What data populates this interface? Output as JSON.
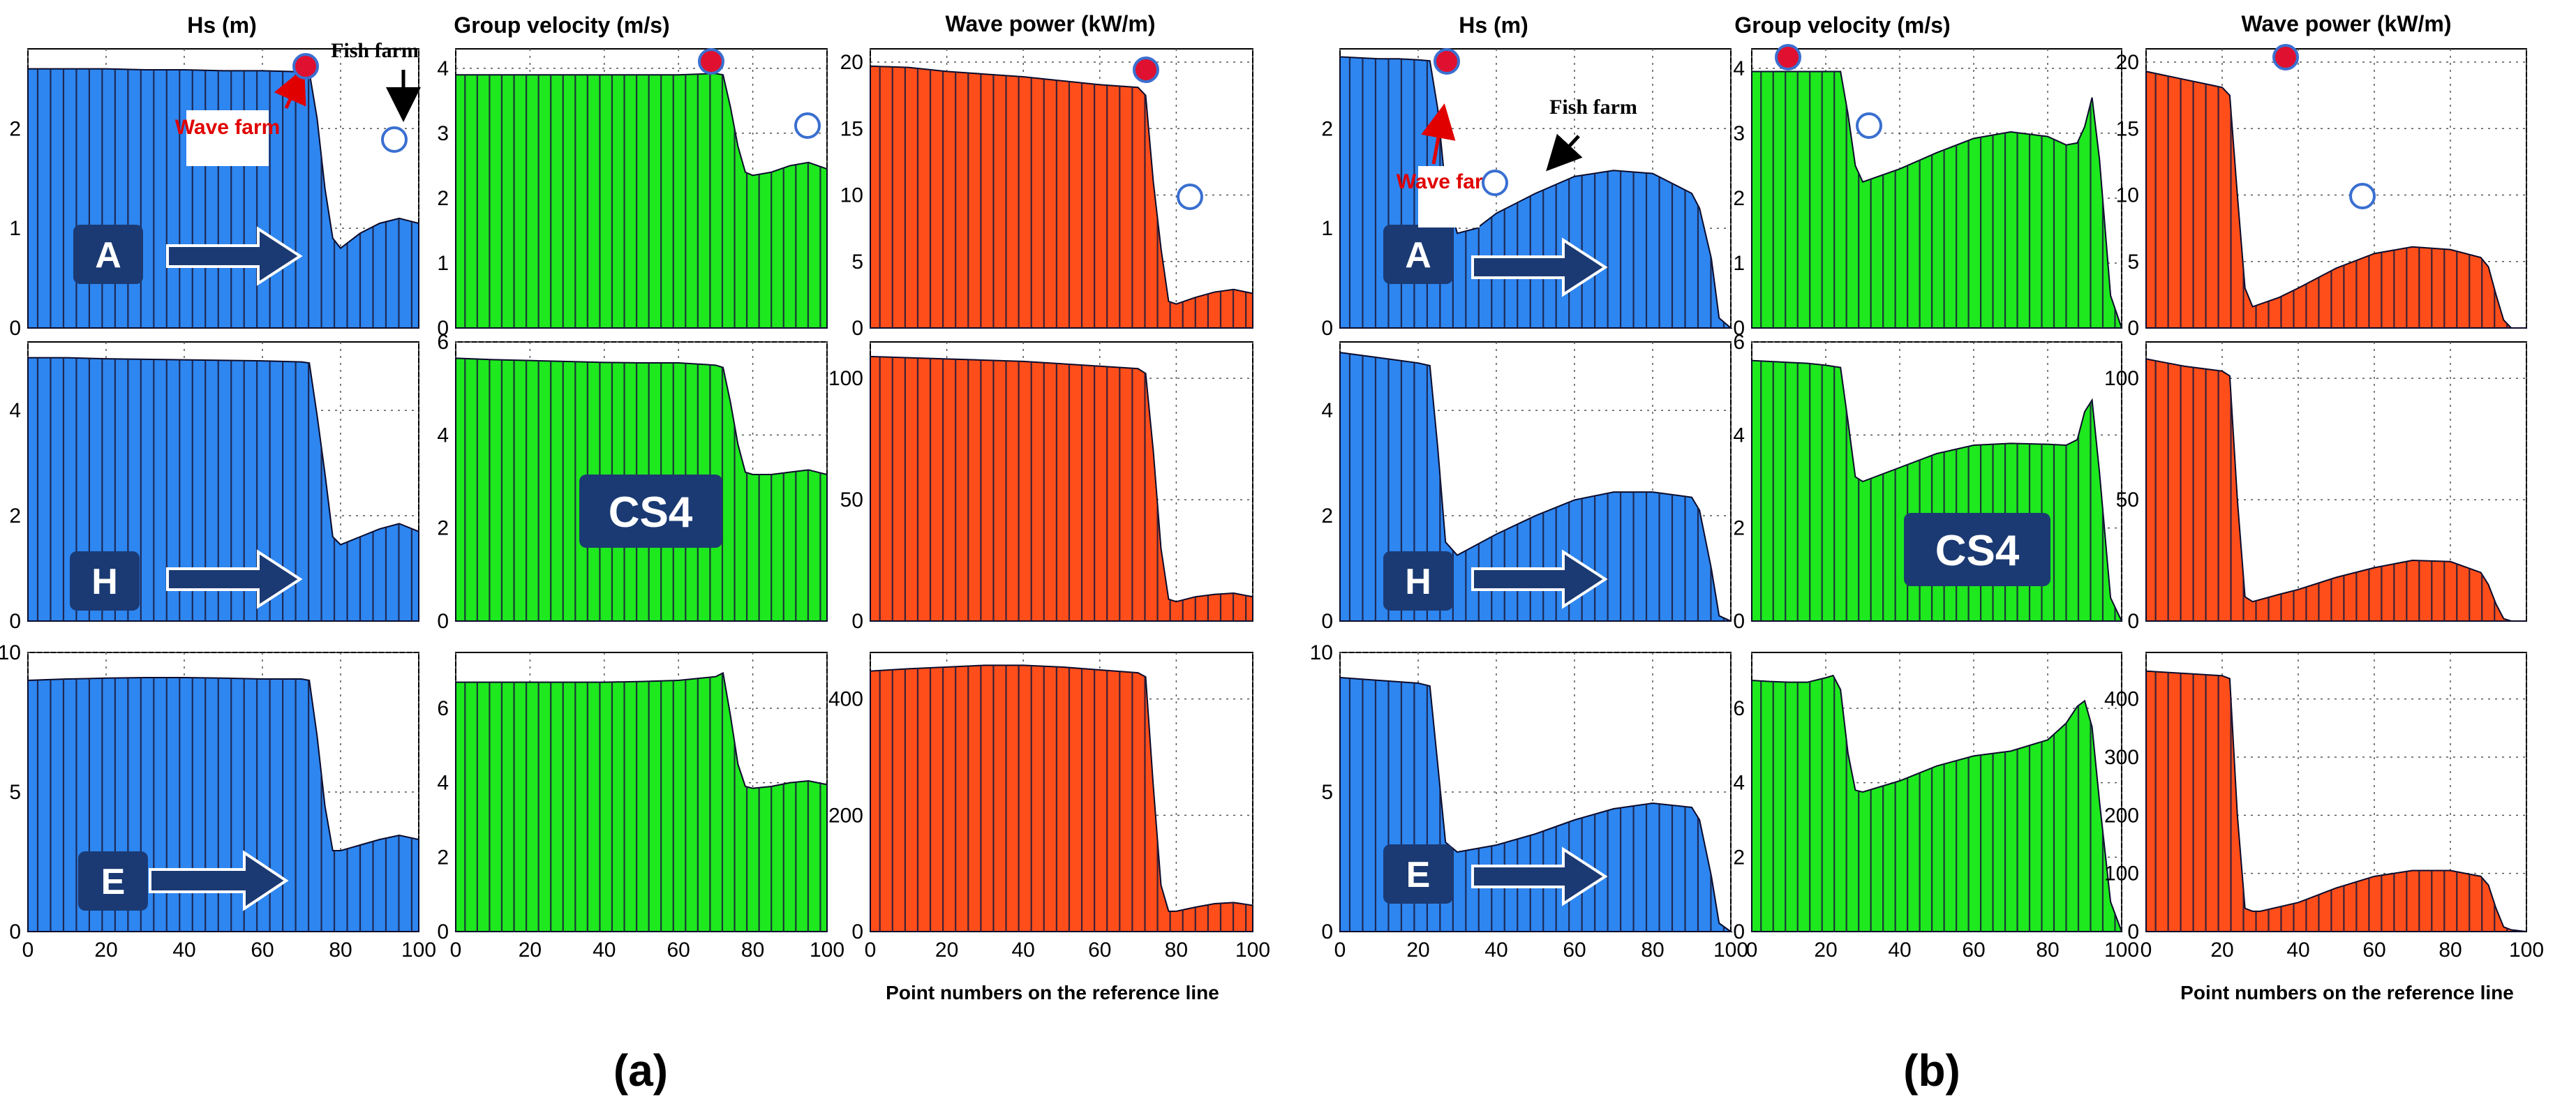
{
  "figure": {
    "sub_labels": [
      "(a)",
      "(b)"
    ],
    "x_axis_title": "Point numbers on the reference line",
    "column_titles": [
      "Hs (m)",
      "Group velocity (m/s)",
      "Wave power (kW/m)"
    ],
    "row_labels": [
      "A",
      "H",
      "E"
    ],
    "center_tag": "CS4",
    "annotations": {
      "wave_farm": "Wave farm",
      "fish_farm": "Fish farm"
    },
    "colors": {
      "hs": "#2e86f0",
      "velocity": "#1ee81e",
      "power": "#ff4e1a",
      "stripe": "#1a1a3c",
      "label_box": "#1b3a73",
      "marker": "#e01030"
    }
  },
  "chart_data": [
    {
      "group": "a",
      "row": "A",
      "variable": "Hs (m)",
      "type": "area",
      "x": [
        0,
        10,
        20,
        30,
        40,
        50,
        60,
        70,
        72,
        74,
        76,
        78,
        80,
        85,
        90,
        95,
        100
      ],
      "y": [
        2.6,
        2.6,
        2.6,
        2.59,
        2.59,
        2.58,
        2.58,
        2.57,
        2.57,
        2.1,
        1.4,
        0.9,
        0.8,
        0.95,
        1.05,
        1.1,
        1.05
      ],
      "xlim": [
        0,
        100
      ],
      "ylim": [
        0,
        2.8
      ],
      "yticks": [
        0,
        1,
        2
      ],
      "xticks": [
        0,
        20,
        40,
        60,
        80,
        100
      ],
      "xticklabels_shown": false
    },
    {
      "group": "a",
      "row": "A",
      "variable": "Group velocity (m/s)",
      "type": "area",
      "x": [
        0,
        10,
        20,
        30,
        40,
        50,
        60,
        70,
        72,
        74,
        76,
        78,
        80,
        85,
        90,
        95,
        100
      ],
      "y": [
        3.9,
        3.9,
        3.9,
        3.9,
        3.9,
        3.9,
        3.9,
        3.92,
        3.9,
        3.4,
        2.8,
        2.4,
        2.35,
        2.4,
        2.5,
        2.55,
        2.45
      ],
      "xlim": [
        0,
        100
      ],
      "ylim": [
        0,
        4.3
      ],
      "yticks": [
        0,
        1,
        2,
        3,
        4
      ],
      "xticks": [
        0,
        20,
        40,
        60,
        80,
        100
      ],
      "xticklabels_shown": false
    },
    {
      "group": "a",
      "row": "A",
      "variable": "Wave power (kW/m)",
      "type": "area",
      "x": [
        0,
        10,
        20,
        30,
        40,
        50,
        60,
        70,
        72,
        74,
        76,
        78,
        80,
        85,
        90,
        95,
        100
      ],
      "y": [
        19.7,
        19.6,
        19.3,
        19.1,
        18.9,
        18.6,
        18.3,
        18.1,
        17.5,
        11,
        6,
        2,
        1.8,
        2.3,
        2.7,
        2.9,
        2.6
      ],
      "xlim": [
        0,
        100
      ],
      "ylim": [
        0,
        21
      ],
      "yticks": [
        0,
        5,
        10,
        15,
        20
      ],
      "xticks": [
        0,
        20,
        40,
        60,
        80,
        100
      ],
      "xticklabels_shown": false
    },
    {
      "group": "a",
      "row": "H",
      "variable": "Hs (m)",
      "type": "area",
      "x": [
        0,
        10,
        20,
        30,
        40,
        50,
        60,
        70,
        72,
        74,
        76,
        78,
        80,
        85,
        90,
        95,
        100
      ],
      "y": [
        5.0,
        5.0,
        4.98,
        4.97,
        4.96,
        4.95,
        4.94,
        4.92,
        4.9,
        3.9,
        2.8,
        1.6,
        1.45,
        1.6,
        1.75,
        1.85,
        1.7
      ],
      "xlim": [
        0,
        100
      ],
      "ylim": [
        0,
        5.3
      ],
      "yticks": [
        0,
        2,
        4
      ],
      "xticks": [
        0,
        20,
        40,
        60,
        80,
        100
      ],
      "xticklabels_shown": false
    },
    {
      "group": "a",
      "row": "H",
      "variable": "Group velocity (m/s)",
      "type": "area",
      "x": [
        0,
        10,
        20,
        30,
        40,
        50,
        60,
        70,
        72,
        74,
        76,
        78,
        80,
        85,
        90,
        95,
        100
      ],
      "y": [
        5.65,
        5.62,
        5.6,
        5.58,
        5.56,
        5.55,
        5.55,
        5.5,
        5.45,
        4.7,
        3.8,
        3.2,
        3.15,
        3.15,
        3.2,
        3.25,
        3.15
      ],
      "xlim": [
        0,
        100
      ],
      "ylim": [
        0,
        6
      ],
      "yticks": [
        0,
        2,
        4,
        6
      ],
      "xticks": [
        0,
        20,
        40,
        60,
        80,
        100
      ],
      "xticklabels_shown": false
    },
    {
      "group": "a",
      "row": "H",
      "variable": "Wave power (kW/m)",
      "type": "area",
      "x": [
        0,
        10,
        20,
        30,
        40,
        50,
        60,
        70,
        72,
        74,
        76,
        78,
        80,
        85,
        90,
        95,
        100
      ],
      "y": [
        109,
        108.5,
        108,
        107.5,
        107,
        106,
        105,
        104,
        102,
        70,
        30,
        9,
        8,
        10,
        11,
        11.5,
        10
      ],
      "xlim": [
        0,
        100
      ],
      "ylim": [
        0,
        115
      ],
      "yticks": [
        0,
        50,
        100
      ],
      "xticks": [
        0,
        20,
        40,
        60,
        80,
        100
      ],
      "xticklabels_shown": false
    },
    {
      "group": "a",
      "row": "E",
      "variable": "Hs (m)",
      "type": "area",
      "x": [
        0,
        10,
        20,
        30,
        40,
        50,
        60,
        70,
        72,
        74,
        76,
        78,
        80,
        85,
        90,
        95,
        100
      ],
      "y": [
        9.0,
        9.05,
        9.08,
        9.1,
        9.1,
        9.08,
        9.05,
        9.05,
        9.0,
        7.0,
        4.5,
        2.9,
        2.9,
        3.1,
        3.3,
        3.45,
        3.3
      ],
      "xlim": [
        0,
        100
      ],
      "ylim": [
        0,
        10
      ],
      "yticks": [
        0,
        5,
        10
      ],
      "xticks": [
        0,
        20,
        40,
        60,
        80,
        100
      ],
      "xticklabels_shown": true
    },
    {
      "group": "a",
      "row": "E",
      "variable": "Group velocity (m/s)",
      "type": "area",
      "x": [
        0,
        10,
        20,
        30,
        40,
        50,
        60,
        70,
        72,
        74,
        76,
        78,
        80,
        85,
        90,
        95,
        100
      ],
      "y": [
        6.7,
        6.7,
        6.7,
        6.7,
        6.7,
        6.72,
        6.75,
        6.85,
        6.95,
        5.8,
        4.5,
        3.9,
        3.85,
        3.9,
        4.0,
        4.05,
        3.95
      ],
      "xlim": [
        0,
        100
      ],
      "ylim": [
        0,
        7.5
      ],
      "yticks": [
        0,
        2,
        4,
        6
      ],
      "xticks": [
        0,
        20,
        40,
        60,
        80,
        100
      ],
      "xticklabels_shown": true
    },
    {
      "group": "a",
      "row": "E",
      "variable": "Wave power (kW/m)",
      "type": "area",
      "x": [
        0,
        10,
        20,
        30,
        40,
        50,
        60,
        70,
        72,
        74,
        76,
        78,
        80,
        85,
        90,
        95,
        100
      ],
      "y": [
        448,
        452,
        455,
        458,
        458,
        455,
        450,
        445,
        438,
        250,
        80,
        35,
        35,
        42,
        48,
        50,
        45
      ],
      "xlim": [
        0,
        100
      ],
      "ylim": [
        0,
        480
      ],
      "yticks": [
        0,
        200,
        400
      ],
      "xticks": [
        0,
        20,
        40,
        60,
        80,
        100
      ],
      "xticklabels_shown": true
    },
    {
      "group": "b",
      "row": "A",
      "variable": "Hs (m)",
      "type": "area",
      "x": [
        0,
        5,
        10,
        15,
        20,
        23,
        25,
        27,
        30,
        35,
        40,
        50,
        60,
        70,
        80,
        90,
        92,
        95,
        97,
        100
      ],
      "y": [
        2.72,
        2.71,
        2.7,
        2.7,
        2.69,
        2.68,
        2.2,
        1.4,
        0.95,
        1.0,
        1.15,
        1.35,
        1.52,
        1.58,
        1.55,
        1.35,
        1.2,
        0.7,
        0.1,
        0
      ],
      "xlim": [
        0,
        100
      ],
      "ylim": [
        0,
        2.8
      ],
      "yticks": [
        0,
        1,
        2
      ],
      "xticks": [
        0,
        20,
        40,
        60,
        80,
        100
      ],
      "xticklabels_shown": false
    },
    {
      "group": "b",
      "row": "A",
      "variable": "Group velocity (m/s)",
      "type": "area",
      "x": [
        0,
        5,
        10,
        15,
        20,
        24,
        26,
        28,
        30,
        40,
        50,
        60,
        70,
        80,
        85,
        88,
        90,
        92,
        94,
        97,
        100
      ],
      "y": [
        3.95,
        3.95,
        3.95,
        3.95,
        3.95,
        3.95,
        3.3,
        2.5,
        2.25,
        2.45,
        2.7,
        2.92,
        3.02,
        2.95,
        2.82,
        2.85,
        3.1,
        3.55,
        2.6,
        0.5,
        0
      ],
      "xlim": [
        0,
        100
      ],
      "ylim": [
        0,
        4.3
      ],
      "yticks": [
        0,
        1,
        2,
        3,
        4
      ],
      "xticks": [
        0,
        20,
        40,
        60,
        80,
        100
      ],
      "xticklabels_shown": false
    },
    {
      "group": "b",
      "row": "A",
      "variable": "Wave power (kW/m)",
      "type": "area",
      "x": [
        0,
        5,
        10,
        15,
        20,
        22,
        24,
        26,
        28,
        35,
        40,
        50,
        60,
        70,
        80,
        88,
        90,
        92,
        94,
        96,
        100
      ],
      "y": [
        19.3,
        19.0,
        18.7,
        18.4,
        18.1,
        17.5,
        10,
        3,
        1.6,
        2.3,
        3,
        4.5,
        5.6,
        6.1,
        5.9,
        5.3,
        4.6,
        2.5,
        0.6,
        0,
        0
      ],
      "xlim": [
        0,
        100
      ],
      "ylim": [
        0,
        21
      ],
      "yticks": [
        0,
        5,
        10,
        15,
        20
      ],
      "xticks": [
        0,
        20,
        40,
        60,
        80,
        100
      ],
      "xticklabels_shown": false
    },
    {
      "group": "b",
      "row": "H",
      "variable": "Hs (m)",
      "type": "area",
      "x": [
        0,
        5,
        10,
        15,
        20,
        23,
        25,
        27,
        30,
        40,
        50,
        60,
        70,
        80,
        90,
        92,
        95,
        97,
        100
      ],
      "y": [
        5.1,
        5.05,
        5.0,
        4.95,
        4.9,
        4.85,
        3.3,
        1.5,
        1.25,
        1.65,
        2.0,
        2.3,
        2.45,
        2.45,
        2.35,
        2.1,
        1.0,
        0.1,
        0
      ],
      "xlim": [
        0,
        100
      ],
      "ylim": [
        0,
        5.3
      ],
      "yticks": [
        0,
        2,
        4
      ],
      "xticks": [
        0,
        20,
        40,
        60,
        80,
        100
      ],
      "xticklabels_shown": false
    },
    {
      "group": "b",
      "row": "H",
      "variable": "Group velocity (m/s)",
      "type": "area",
      "x": [
        0,
        5,
        10,
        15,
        20,
        24,
        26,
        28,
        30,
        40,
        50,
        60,
        70,
        80,
        85,
        88,
        90,
        92,
        94,
        97,
        100
      ],
      "y": [
        5.6,
        5.58,
        5.56,
        5.54,
        5.5,
        5.45,
        4.3,
        3.1,
        3.0,
        3.3,
        3.6,
        3.78,
        3.82,
        3.8,
        3.78,
        3.9,
        4.5,
        4.75,
        3.2,
        0.5,
        0
      ],
      "xlim": [
        0,
        100
      ],
      "ylim": [
        0,
        6
      ],
      "yticks": [
        0,
        2,
        4,
        6
      ],
      "xticks": [
        0,
        20,
        40,
        60,
        80,
        100
      ],
      "xticklabels_shown": false
    },
    {
      "group": "b",
      "row": "H",
      "variable": "Wave power (kW/m)",
      "type": "area",
      "x": [
        0,
        5,
        10,
        15,
        20,
        22,
        24,
        26,
        28,
        35,
        40,
        50,
        60,
        70,
        80,
        88,
        90,
        92,
        94,
        96,
        100
      ],
      "y": [
        108,
        106.5,
        105,
        104,
        103,
        101,
        50,
        10,
        8,
        11,
        13,
        18,
        22,
        25,
        24.5,
        20,
        15,
        7,
        1,
        0,
        0
      ],
      "xlim": [
        0,
        100
      ],
      "ylim": [
        0,
        115
      ],
      "yticks": [
        0,
        50,
        100
      ],
      "xticks": [
        0,
        20,
        40,
        60,
        80,
        100
      ],
      "xticklabels_shown": false
    },
    {
      "group": "b",
      "row": "E",
      "variable": "Hs (m)",
      "type": "area",
      "x": [
        0,
        5,
        10,
        15,
        20,
        23,
        25,
        27,
        30,
        40,
        50,
        60,
        70,
        80,
        90,
        92,
        95,
        97,
        100
      ],
      "y": [
        9.1,
        9.05,
        9.0,
        8.95,
        8.9,
        8.8,
        6.0,
        3.2,
        2.85,
        3.1,
        3.5,
        4.0,
        4.4,
        4.6,
        4.45,
        4.0,
        2.0,
        0.3,
        0
      ],
      "xlim": [
        0,
        100
      ],
      "ylim": [
        0,
        10
      ],
      "yticks": [
        0,
        5,
        10
      ],
      "xticks": [
        0,
        20,
        40,
        60,
        80,
        100
      ],
      "xticklabels_shown": true
    },
    {
      "group": "b",
      "row": "E",
      "variable": "Group velocity (m/s)",
      "type": "area",
      "x": [
        0,
        5,
        10,
        15,
        20,
        22,
        24,
        26,
        28,
        30,
        40,
        50,
        60,
        70,
        80,
        85,
        88,
        90,
        92,
        94,
        97,
        100
      ],
      "y": [
        6.75,
        6.72,
        6.7,
        6.7,
        6.82,
        6.88,
        6.5,
        4.8,
        3.8,
        3.75,
        4.05,
        4.45,
        4.72,
        4.85,
        5.15,
        5.6,
        6.05,
        6.2,
        5.5,
        3.5,
        0.8,
        0
      ],
      "xlim": [
        0,
        100
      ],
      "ylim": [
        0,
        7.5
      ],
      "yticks": [
        0,
        2,
        4,
        6
      ],
      "xticks": [
        0,
        20,
        40,
        60,
        80,
        100
      ],
      "xticklabels_shown": true
    },
    {
      "group": "b",
      "row": "E",
      "variable": "Wave power (kW/m)",
      "type": "area",
      "x": [
        0,
        5,
        10,
        15,
        20,
        22,
        24,
        26,
        28,
        30,
        40,
        50,
        60,
        70,
        80,
        88,
        90,
        92,
        94,
        96,
        100
      ],
      "y": [
        448,
        446,
        444,
        442,
        440,
        435,
        200,
        40,
        35,
        35,
        50,
        75,
        95,
        105,
        105,
        95,
        80,
        40,
        8,
        3,
        0
      ],
      "xlim": [
        0,
        100
      ],
      "ylim": [
        0,
        480
      ],
      "yticks": [
        0,
        100,
        200,
        300,
        400
      ],
      "xticks": [
        0,
        20,
        40,
        60,
        80,
        100
      ],
      "xticklabels_shown": true
    }
  ]
}
